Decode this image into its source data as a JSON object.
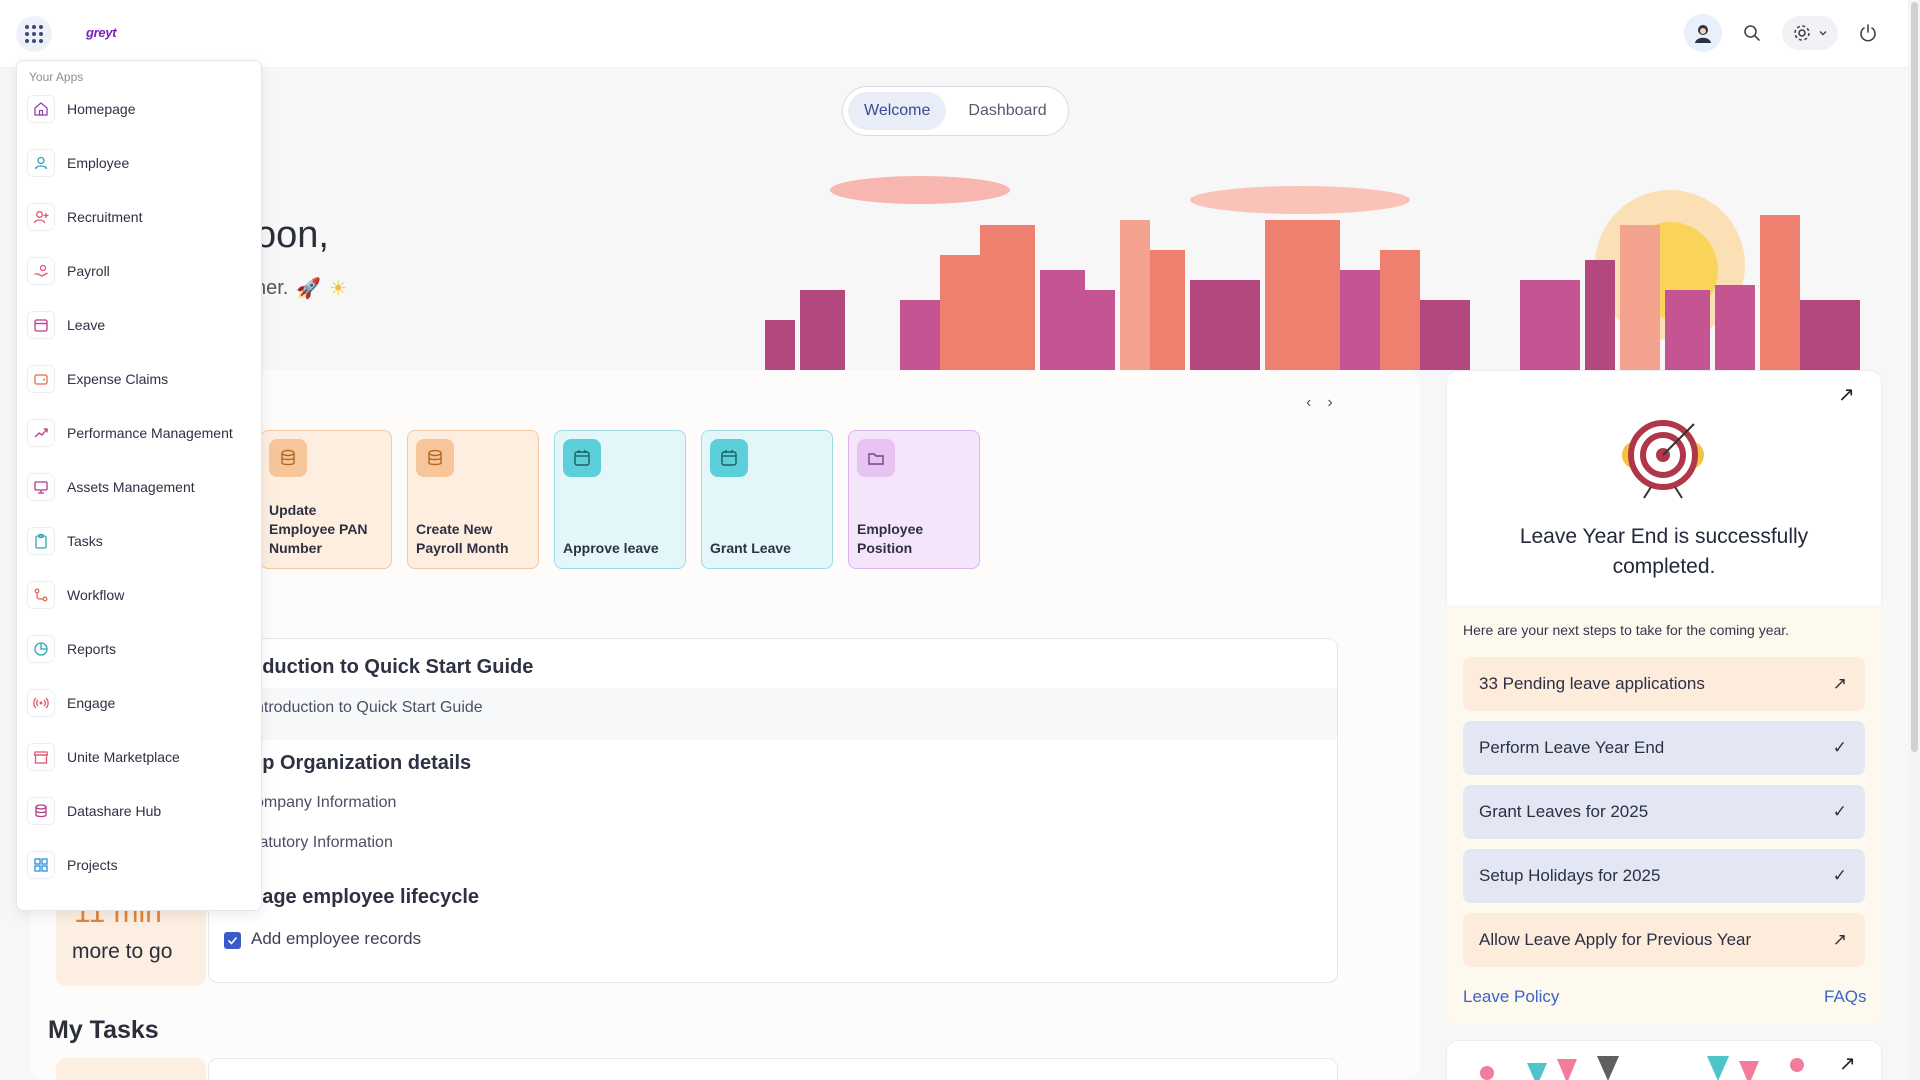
{
  "header": {
    "logo": "greyt"
  },
  "tabs": [
    {
      "label": "Welcome"
    },
    {
      "label": "Dashboard"
    }
  ],
  "greeting": {
    "title": "oon,",
    "subtitle": "her."
  },
  "quick_actions": [
    {
      "label": "Update Employee PAN Number",
      "icon": "database-icon"
    },
    {
      "label": "Create New Payroll Month",
      "icon": "database-icon"
    },
    {
      "label": "Approve leave",
      "icon": "calendar-icon"
    },
    {
      "label": "Grant Leave",
      "icon": "calendar-icon"
    },
    {
      "label": "Employee Position",
      "icon": "folder-icon"
    }
  ],
  "guide": {
    "section1_title": "oduction to Quick Start Guide",
    "section1_item": "ntroduction to Quick Start Guide",
    "section2_title": "up Organization details",
    "section2_item1": "ompany Information",
    "section2_item2": "tatutory Information",
    "section3_title": "nage employee lifecycle",
    "section3_item": "Add employee records"
  },
  "time_left": {
    "value": "11 min",
    "label": "more to go"
  },
  "tasks": {
    "title": "My Tasks"
  },
  "leave_card": {
    "title": "Leave Year End is successfully completed.",
    "intro": "Here are your next steps to take for the coming year.",
    "steps": [
      {
        "label": "33 Pending leave applications",
        "status": "pending"
      },
      {
        "label": "Perform Leave Year End",
        "status": "done"
      },
      {
        "label": "Grant Leaves for 2025",
        "status": "done"
      },
      {
        "label": "Setup Holidays for 2025",
        "status": "done"
      },
      {
        "label": "Allow Leave Apply for Previous Year",
        "status": "pending"
      }
    ],
    "policy_link": "Leave Policy",
    "faq_link": "FAQs"
  },
  "apps_menu": {
    "title": "Your Apps",
    "items": [
      {
        "label": "Homepage",
        "icon": "home-icon",
        "color": "#8e44ad"
      },
      {
        "label": "Employee",
        "icon": "user-icon",
        "color": "#2aa7b8"
      },
      {
        "label": "Recruitment",
        "icon": "user-plus-icon",
        "color": "#e0566e"
      },
      {
        "label": "Payroll",
        "icon": "hand-coin-icon",
        "color": "#e0566e"
      },
      {
        "label": "Leave",
        "icon": "calendar-icon",
        "color": "#c0398a"
      },
      {
        "label": "Expense Claims",
        "icon": "wallet-icon",
        "color": "#e86a4c"
      },
      {
        "label": "Performance Management",
        "icon": "trend-icon",
        "color": "#b23a8a"
      },
      {
        "label": "Assets Management",
        "icon": "monitor-icon",
        "color": "#b23a8a"
      },
      {
        "label": "Tasks",
        "icon": "clipboard-icon",
        "color": "#2aa7b8"
      },
      {
        "label": "Workflow",
        "icon": "workflow-icon",
        "color": "#e86a4c"
      },
      {
        "label": "Reports",
        "icon": "pie-icon",
        "color": "#2aa7b8"
      },
      {
        "label": "Engage",
        "icon": "broadcast-icon",
        "color": "#e0566e"
      },
      {
        "label": "Unite Marketplace",
        "icon": "store-icon",
        "color": "#e0566e"
      },
      {
        "label": "Datashare Hub",
        "icon": "database-icon",
        "color": "#b23a8a"
      },
      {
        "label": "Projects",
        "icon": "grid-icon",
        "color": "#2a8fd8"
      }
    ]
  }
}
